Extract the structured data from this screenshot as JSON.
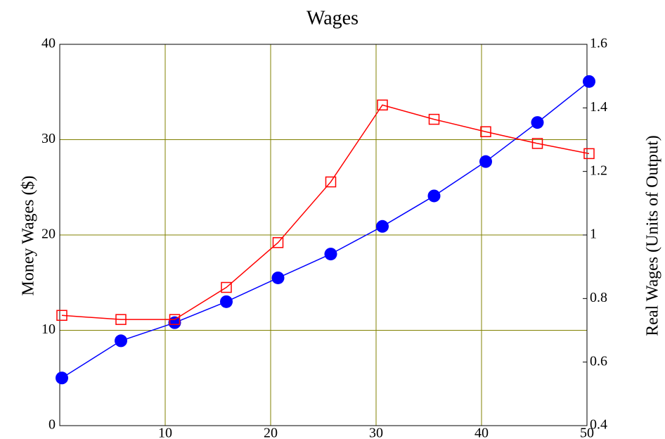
{
  "chart_data": {
    "type": "line",
    "title": "Wages",
    "ylabel": "Money Wages ($)",
    "y2label": "Real Wages (Units of Output)",
    "x": [
      0.2,
      5.8,
      10.9,
      15.8,
      20.7,
      25.7,
      30.6,
      35.5,
      40.4,
      45.3,
      50.2
    ],
    "series": [
      {
        "name": "Money Wages",
        "color": "#0000ff",
        "marker": "circle",
        "axis": "y",
        "values": [
          5.0,
          8.9,
          10.8,
          13.0,
          15.5,
          18.0,
          20.9,
          24.1,
          27.7,
          31.8,
          36.1
        ]
      },
      {
        "name": "Real Wages",
        "color": "#ff0000",
        "marker": "square",
        "axis": "y2",
        "values": [
          0.747,
          0.734,
          0.734,
          0.835,
          0.976,
          1.167,
          1.409,
          1.364,
          1.325,
          1.288,
          1.256
        ]
      }
    ],
    "xlim": [
      0,
      50
    ],
    "xticks": [
      10,
      20,
      30,
      40,
      50
    ],
    "ylim": [
      0,
      40
    ],
    "yticks": [
      0,
      10,
      20,
      30,
      40
    ],
    "y2lim": [
      0.4,
      1.6
    ],
    "y2ticks": [
      0.4,
      0.6,
      0.8,
      1,
      1.2,
      1.4,
      1.6
    ],
    "grid": true,
    "grid_color": "#808000"
  }
}
